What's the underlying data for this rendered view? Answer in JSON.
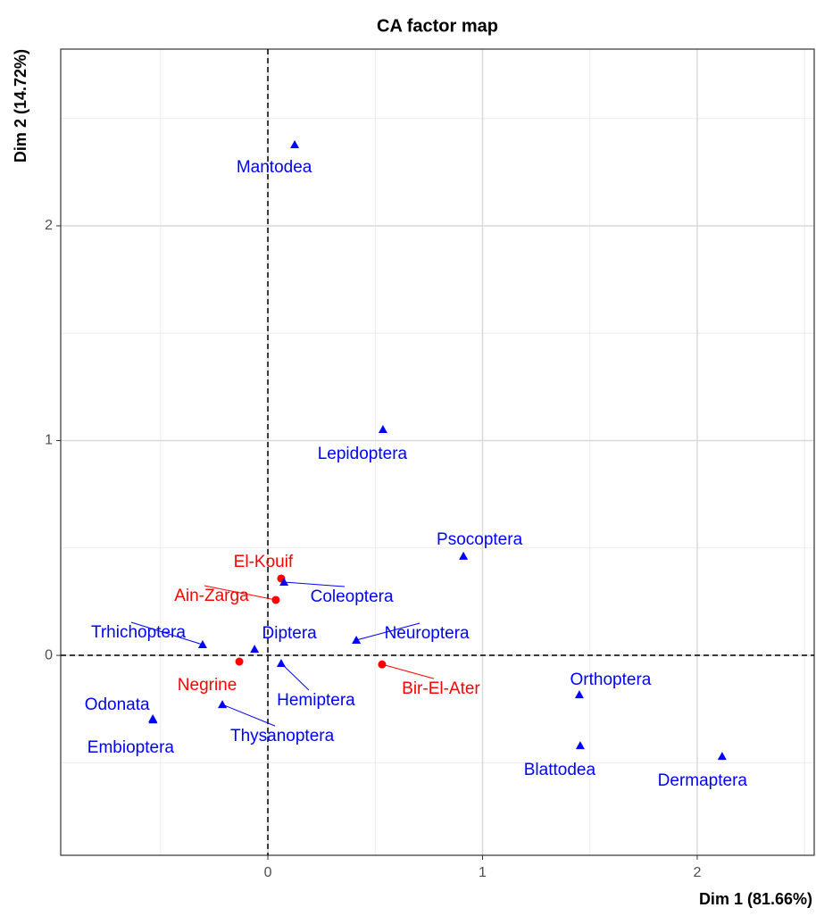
{
  "chart_data": {
    "type": "scatter",
    "title": "CA factor map",
    "x_label": "Dim 1 (81.66%)",
    "y_label": "Dim 2 (14.72%)",
    "xlim": [
      -0.965,
      2.545
    ],
    "ylim": [
      -0.931,
      2.823
    ],
    "xticks": [
      0,
      1,
      2
    ],
    "yticks": [
      0,
      1,
      2
    ],
    "x_minor_ticks": [
      -0.5,
      0.5,
      1.5,
      2.5
    ],
    "y_minor_ticks": [
      -0.5,
      0.5,
      1.5,
      2.5
    ],
    "grid": true,
    "hline": 0,
    "vline": 0,
    "series": [
      {
        "color": "#ff0000",
        "shape": "circle",
        "labels": [
          "El-Kouif",
          "Ain-Zarga",
          "Negrine",
          "Bir-El-Ater"
        ],
        "x": [
          0.062,
          0.037,
          -0.133,
          0.532
        ],
        "y": [
          0.358,
          0.258,
          -0.029,
          -0.042
        ]
      },
      {
        "color": "#0000ff",
        "shape": "triangle",
        "labels": [
          "Mantodea",
          "Lepidoptera",
          "Psocoptera",
          "Coleoptera",
          "Neuroptera",
          "Diptera",
          "Trhichoptera",
          "Hemiptera",
          "Thysanoptera",
          "Odonata",
          "Embioptera",
          "Orthoptera",
          "Blattodea",
          "Dermaptera"
        ],
        "x": [
          0.125,
          0.536,
          0.911,
          0.075,
          0.412,
          -0.062,
          -0.304,
          0.062,
          -0.212,
          -0.536,
          -0.535,
          1.451,
          1.455,
          2.116
        ],
        "y": [
          2.378,
          1.052,
          0.462,
          0.341,
          0.071,
          0.029,
          0.05,
          -0.037,
          -0.229,
          -0.295,
          -0.3,
          -0.183,
          -0.42,
          -0.47
        ]
      }
    ]
  }
}
